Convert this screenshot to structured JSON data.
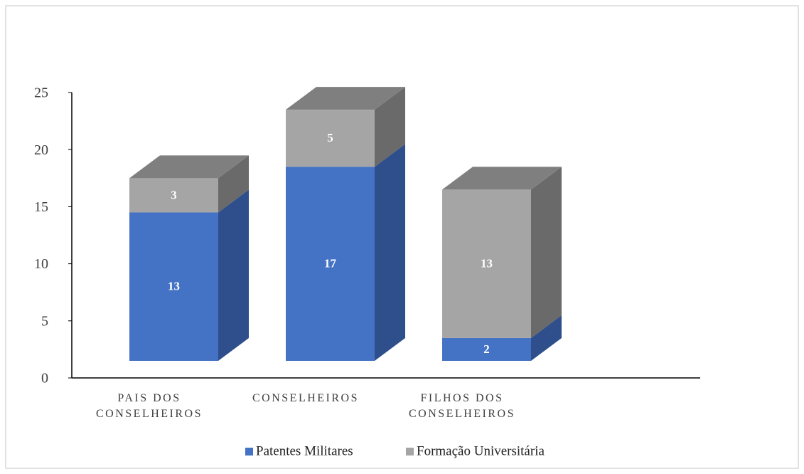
{
  "chart_data": {
    "type": "bar3d_stacked",
    "categories": [
      "PAIS DOS CONSELHEIROS",
      "CONSELHEIROS",
      "FILHOS DOS CONSELHEIROS"
    ],
    "series": [
      {
        "name": "Patentes Militares",
        "color": "#4472c4",
        "side_color": "#2f4f8c",
        "top_color": "#5a86d0",
        "values": [
          13,
          17,
          2
        ]
      },
      {
        "name": "Formação Universitária",
        "color": "#a5a5a5",
        "side_color": "#6a6a6a",
        "top_color": "#7f7f7f",
        "values": [
          3,
          5,
          13
        ]
      }
    ],
    "ylim": [
      0,
      25
    ],
    "yticks": [
      0,
      5,
      10,
      15,
      20,
      25
    ],
    "legend": "bottom"
  }
}
